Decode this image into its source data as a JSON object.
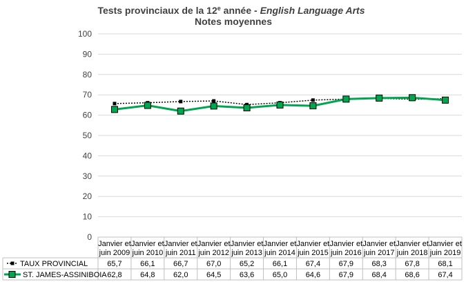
{
  "chart_data": {
    "type": "line",
    "title": "Tests provinciaux de la 12",
    "title_sup": "e",
    "title_mid": " année - ",
    "title_italic": "English Language Arts",
    "subtitle": "Notes moyennes",
    "ylim": [
      0,
      100
    ],
    "ytick_step": 10,
    "yticks": [
      "0",
      "10",
      "20",
      "30",
      "40",
      "50",
      "60",
      "70",
      "80",
      "90",
      "100"
    ],
    "grid": true,
    "categories": [
      [
        "Janvier et",
        "juin 2009"
      ],
      [
        "Janvier et",
        "juin 2010"
      ],
      [
        "Janvier et",
        "juin 2011"
      ],
      [
        "Janvier et",
        "juin 2012"
      ],
      [
        "Janvier et",
        "juin 2013"
      ],
      [
        "Janvier et",
        "juin 2014"
      ],
      [
        "Janvier et",
        "juin 2015"
      ],
      [
        "Janvier et",
        "juin 2016"
      ],
      [
        "Janvier et",
        "juin 2017"
      ],
      [
        "Janvier et",
        "juin 2018"
      ],
      [
        "Janvier et",
        "juin 2019"
      ]
    ],
    "series": [
      {
        "name": "TAUX PROVINCIAL",
        "values": [
          65.7,
          66.1,
          66.7,
          67.0,
          65.2,
          66.1,
          67.4,
          67.9,
          68.3,
          67.8,
          68.1
        ],
        "labels": [
          "65,7",
          "66,1",
          "66,7",
          "67,0",
          "65,2",
          "66,1",
          "67,4",
          "67,9",
          "68,3",
          "67,8",
          "68,1"
        ],
        "color": "#000000",
        "style": "dotted",
        "marker": "small-square"
      },
      {
        "name": "ST. JAMES-ASSINIBOIA",
        "values": [
          62.8,
          64.8,
          62.0,
          64.5,
          63.6,
          65.0,
          64.6,
          67.9,
          68.4,
          68.6,
          67.4
        ],
        "labels": [
          "62,8",
          "64,8",
          "62,0",
          "64,5",
          "63,6",
          "65,0",
          "64,6",
          "67,9",
          "68,4",
          "68,6",
          "67,4"
        ],
        "color": "#00A550",
        "style": "solid",
        "marker": "large-square"
      }
    ]
  }
}
